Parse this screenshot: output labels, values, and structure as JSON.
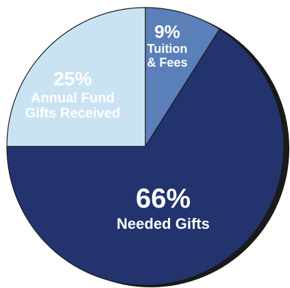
{
  "chart_data": {
    "type": "pie",
    "slices": [
      {
        "value": 9,
        "percent_label": "9%",
        "label_lines": [
          "Tuition",
          "& Fees"
        ],
        "color": "#5b7fb8"
      },
      {
        "value": 66,
        "percent_label": "66%",
        "label_lines": [
          "Needed Gifts"
        ],
        "color": "#22336e"
      },
      {
        "value": 25,
        "percent_label": "25%",
        "label_lines": [
          "Annual Fund",
          "Gifts Received"
        ],
        "color": "#c9e3f3"
      }
    ],
    "start_angle_deg": 0,
    "direction": "clockwise",
    "colors": {
      "shadow": "#1a1a1a",
      "slice_border": "#1a1a1a"
    }
  }
}
